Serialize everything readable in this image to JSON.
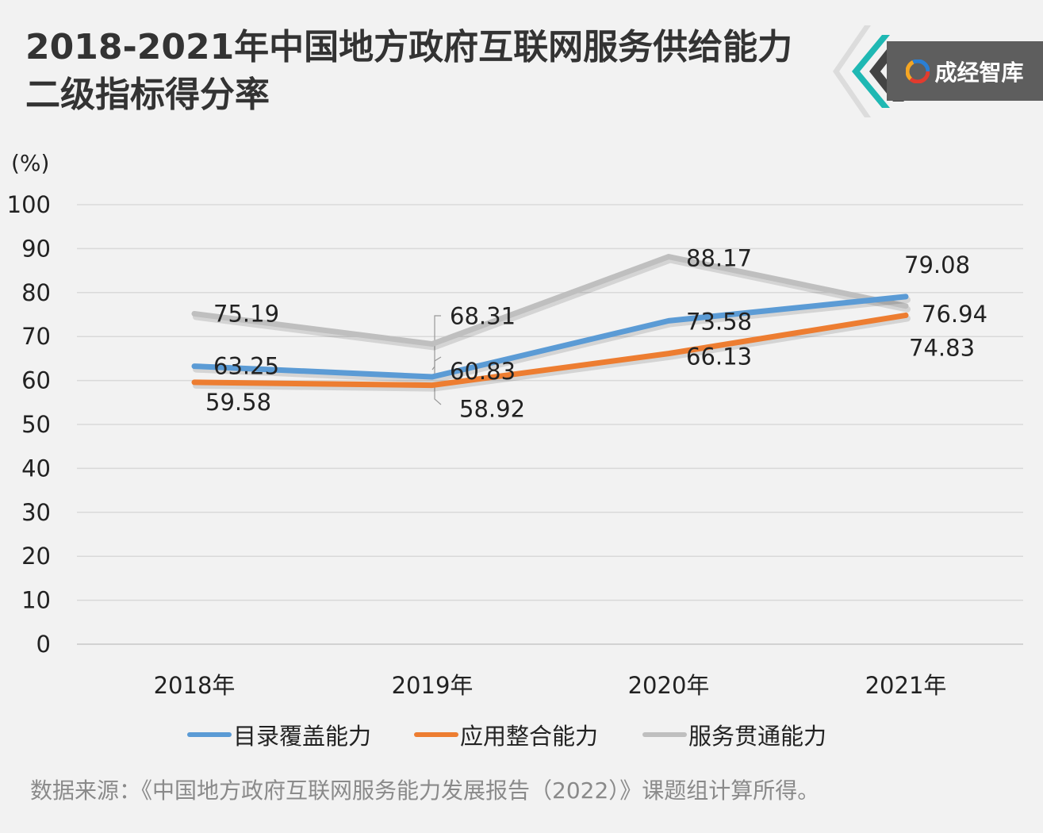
{
  "title_line1": "2018-2021年中国地方政府互联网服务供给能力",
  "title_line2": "二级指标得分率",
  "brand": {
    "name": "成经智库"
  },
  "source": "数据来源：《中国地方政府互联网服务能力发展报告（2022）》课题组计算所得。",
  "chart_data": {
    "type": "line",
    "title": "2018-2021年中国地方政府互联网服务供给能力二级指标得分率",
    "unit_label": "(%)",
    "categories": [
      "2018年",
      "2019年",
      "2020年",
      "2021年"
    ],
    "ylim": [
      0,
      100
    ],
    "yticks": [
      0,
      10,
      20,
      30,
      40,
      50,
      60,
      70,
      80,
      90,
      100
    ],
    "grid": true,
    "legend_position": "bottom",
    "series": [
      {
        "name": "目录覆盖能力",
        "color": "#5b9bd5",
        "values": [
          63.25,
          60.83,
          73.58,
          79.08
        ]
      },
      {
        "name": "应用整合能力",
        "color": "#ed7d31",
        "values": [
          59.58,
          58.92,
          66.13,
          74.83
        ]
      },
      {
        "name": "服务贯通能力",
        "color": "#bfbfbf",
        "values": [
          75.19,
          68.31,
          88.17,
          76.94
        ]
      }
    ]
  }
}
